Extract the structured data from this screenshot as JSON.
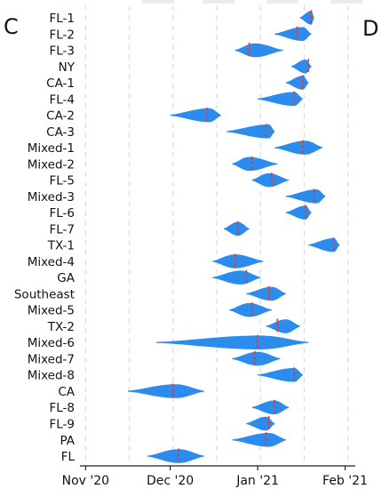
{
  "panel_labels": {
    "left": "C",
    "right": "D"
  },
  "chart_data": {
    "type": "violin",
    "orientation": "horizontal",
    "x_axis": {
      "ticks": [
        {
          "label": "Nov '20",
          "date": "2020-11-01"
        },
        {
          "label": "Dec '20",
          "date": "2020-12-01"
        },
        {
          "label": "Jan '21",
          "date": "2021-01-01"
        },
        {
          "label": "Feb '21",
          "date": "2021-02-01"
        }
      ],
      "range": [
        "2020-10-30",
        "2021-02-04"
      ],
      "grid": "dashed vertical, biweekly"
    },
    "violin_color": "#2b8cee",
    "median_color": "#e8372b",
    "lineages": [
      {
        "label": "FL-1",
        "min": "2021-01-16",
        "max": "2021-01-21",
        "peak": "2021-01-20",
        "median": "2021-01-20"
      },
      {
        "label": "FL-2",
        "min": "2021-01-07",
        "max": "2021-01-20",
        "peak": "2021-01-17",
        "median": "2021-01-15"
      },
      {
        "label": "FL-3",
        "min": "2020-12-24",
        "max": "2021-01-10",
        "peak": "2020-12-31",
        "median": "2020-12-29"
      },
      {
        "label": "NY",
        "min": "2021-01-13",
        "max": "2021-01-20",
        "peak": "2021-01-18",
        "median": "2021-01-19"
      },
      {
        "label": "CA-1",
        "min": "2021-01-11",
        "max": "2021-01-19",
        "peak": "2021-01-17",
        "median": "2021-01-17"
      },
      {
        "label": "FL-4",
        "min": "2021-01-01",
        "max": "2021-01-17",
        "peak": "2021-01-14",
        "median": "2021-01-14"
      },
      {
        "label": "CA-2",
        "min": "2020-12-01",
        "max": "2020-12-19",
        "peak": "2020-12-15",
        "median": "2020-12-14"
      },
      {
        "label": "CA-3",
        "min": "2020-12-21",
        "max": "2021-01-07",
        "peak": "2021-01-05",
        "median": "2021-01-04"
      },
      {
        "label": "Mixed-1",
        "min": "2021-01-07",
        "max": "2021-01-24",
        "peak": "2021-01-18",
        "median": "2021-01-17"
      },
      {
        "label": "Mixed-2",
        "min": "2020-12-23",
        "max": "2021-01-08",
        "peak": "2020-12-29",
        "median": "2020-12-30"
      },
      {
        "label": "FL-5",
        "min": "2020-12-30",
        "max": "2021-01-12",
        "peak": "2021-01-05",
        "median": "2021-01-06"
      },
      {
        "label": "Mixed-3",
        "min": "2021-01-11",
        "max": "2021-01-25",
        "peak": "2021-01-22",
        "median": "2021-01-21"
      },
      {
        "label": "FL-6",
        "min": "2021-01-11",
        "max": "2021-01-20",
        "peak": "2021-01-18",
        "median": "2021-01-18"
      },
      {
        "label": "FL-7",
        "min": "2020-12-20",
        "max": "2020-12-29",
        "peak": "2020-12-25",
        "median": "2020-12-25"
      },
      {
        "label": "TX-1",
        "min": "2021-01-19",
        "max": "2021-01-30",
        "peak": "2021-01-28",
        "median": "2021-01-28"
      },
      {
        "label": "Mixed-4",
        "min": "2020-12-16",
        "max": "2021-01-03",
        "peak": "2020-12-24",
        "median": "2020-12-24"
      },
      {
        "label": "GA",
        "min": "2020-12-16",
        "max": "2021-01-02",
        "peak": "2020-12-26",
        "median": "2020-12-28"
      },
      {
        "label": "Southeast",
        "min": "2020-12-28",
        "max": "2021-01-11",
        "peak": "2021-01-06",
        "median": "2021-01-05"
      },
      {
        "label": "Mixed-5",
        "min": "2020-12-22",
        "max": "2021-01-06",
        "peak": "2020-12-29",
        "median": "2020-12-30"
      },
      {
        "label": "TX-2",
        "min": "2021-01-04",
        "max": "2021-01-16",
        "peak": "2021-01-11",
        "median": "2021-01-08"
      },
      {
        "label": "Mixed-6",
        "min": "2020-11-26",
        "max": "2021-01-19",
        "peak": "2021-01-02",
        "median": "2021-01-01"
      },
      {
        "label": "Mixed-7",
        "min": "2020-12-23",
        "max": "2021-01-09",
        "peak": "2021-01-01",
        "median": "2020-12-31"
      },
      {
        "label": "Mixed-8",
        "min": "2021-01-01",
        "max": "2021-01-17",
        "peak": "2021-01-14",
        "median": "2021-01-14"
      },
      {
        "label": "CA",
        "min": "2020-11-16",
        "max": "2020-12-13",
        "peak": "2020-12-03",
        "median": "2020-12-02"
      },
      {
        "label": "FL-8",
        "min": "2020-12-30",
        "max": "2021-01-12",
        "peak": "2021-01-07",
        "median": "2021-01-07"
      },
      {
        "label": "FL-9",
        "min": "2020-12-28",
        "max": "2021-01-07",
        "peak": "2021-01-04",
        "median": "2021-01-05"
      },
      {
        "label": "PA",
        "min": "2020-12-23",
        "max": "2021-01-11",
        "peak": "2021-01-05",
        "median": "2021-01-04"
      },
      {
        "label": "FL",
        "min": "2020-11-23",
        "max": "2020-12-13",
        "peak": "2020-12-04",
        "median": "2020-12-04"
      }
    ]
  }
}
